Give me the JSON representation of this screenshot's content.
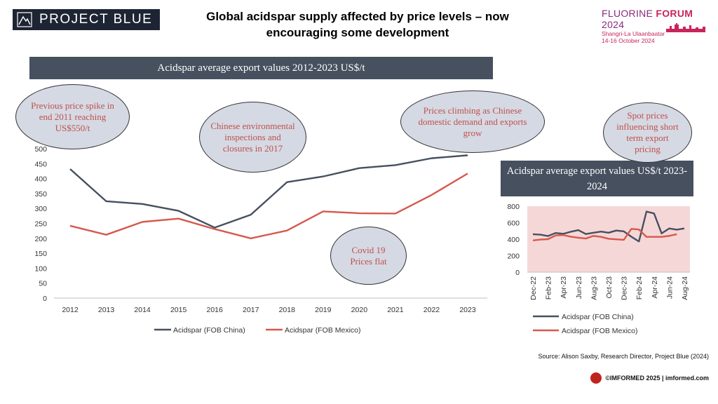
{
  "header": {
    "logo_text": "PROJECT BLUE",
    "headline_line1": "Global acidspar supply affected by price levels – now",
    "headline_line2": "encouraging some development",
    "forum_title_a": "FLUORINE ",
    "forum_title_b": "FORUM",
    "forum_title_c": " 2024",
    "forum_location": "Shangri-La Ulaanbaatar",
    "forum_dates": "14-16 October 2024"
  },
  "annotations": {
    "note_1": "Previous price spike in end 2011 reaching US$550/t",
    "note_2": "Chinese environmental inspections and closures in 2017",
    "note_3": "Prices climbing as Chinese domestic demand and exports grow",
    "note_4": "Covid 19 Prices flat",
    "note_5": "Spot prices influencing short term export pricing"
  },
  "colors": {
    "china": "#46505f",
    "mexico": "#d6584e",
    "plot_bg_small": "#f6d7d7"
  },
  "chart_data": [
    {
      "type": "line",
      "title": "Acidspar average export values  2012-2023 US$/t",
      "x": [
        "2012",
        "2013",
        "2014",
        "2015",
        "2016",
        "2017",
        "2018",
        "2019",
        "2020",
        "2021",
        "2022",
        "2023"
      ],
      "series": [
        {
          "name": "Acidspar (FOB China)",
          "values": [
            432,
            324,
            315,
            292,
            236,
            279,
            388,
            407,
            435,
            445,
            468,
            478
          ]
        },
        {
          "name": "Acidspar (FOB Mexico)",
          "values": [
            242,
            212,
            255,
            266,
            231,
            200,
            226,
            290,
            284,
            283,
            345,
            417
          ]
        }
      ],
      "ylim": [
        0,
        500
      ],
      "yticks": [
        "0",
        "50",
        "100",
        "150",
        "200",
        "250",
        "300",
        "350",
        "400",
        "450",
        "500"
      ],
      "grid": false,
      "legend": "bottom"
    },
    {
      "type": "line",
      "title": "Acidspar average export values US$/t 2023-2024",
      "x": [
        "Dec-22",
        "Jan-23",
        "Feb-23",
        "Mar-23",
        "Apr-23",
        "May-23",
        "Jun-23",
        "Jul-23",
        "Aug-23",
        "Sep-23",
        "Oct-23",
        "Nov-23",
        "Dec-23",
        "Jan-24",
        "Feb-24",
        "Mar-24",
        "Apr-24",
        "May-24",
        "Jun-24",
        "Jul-24",
        "Aug-24"
      ],
      "xticklabels": [
        "Dec-22",
        "Feb-23",
        "Apr-23",
        "Jun-23",
        "Aug-23",
        "Oct-23",
        "Dec-23",
        "Feb-24",
        "Apr-24",
        "Jun-24",
        "Aug-24"
      ],
      "series": [
        {
          "name": "Acidspar (FOB China)",
          "values": [
            460,
            455,
            438,
            475,
            465,
            490,
            510,
            462,
            478,
            492,
            478,
            505,
            495,
            430,
            372,
            735,
            712,
            470,
            530,
            515,
            530
          ]
        },
        {
          "name": "Acidspar (FOB Mexico)",
          "values": [
            385,
            395,
            400,
            445,
            450,
            430,
            418,
            408,
            440,
            428,
            405,
            398,
            392,
            525,
            518,
            428,
            428,
            428,
            440,
            460,
            null
          ]
        }
      ],
      "ylim": [
        0,
        800
      ],
      "yticks": [
        "0",
        "200",
        "400",
        "600",
        "800"
      ],
      "grid": false,
      "legend": "bottom"
    }
  ],
  "footer": {
    "source": "Source: Alison Saxby, Research Director, Project Blue (2024)",
    "credit": "©IMFORMED 2025  | imformed.com"
  }
}
